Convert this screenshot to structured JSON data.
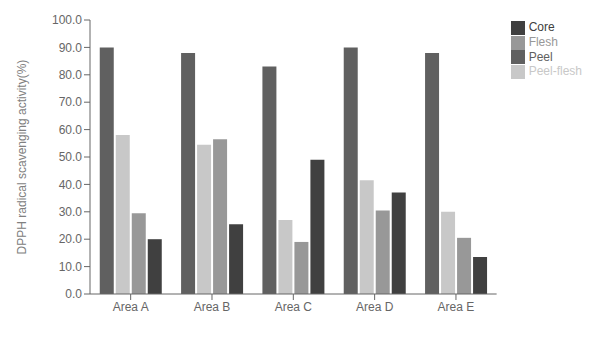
{
  "chart_data": {
    "type": "bar",
    "categories": [
      "Area A",
      "Area B",
      "Area C",
      "Area D",
      "Area E"
    ],
    "series": [
      {
        "name": "Peel",
        "color": "#606060",
        "values": [
          90.0,
          88.0,
          83.0,
          90.0,
          88.0
        ]
      },
      {
        "name": "Peel-flesh",
        "color": "#c8c8c8",
        "values": [
          58.0,
          54.5,
          27.0,
          41.5,
          30.0
        ]
      },
      {
        "name": "Flesh",
        "color": "#989898",
        "values": [
          29.5,
          56.5,
          19.0,
          30.5,
          20.5
        ]
      },
      {
        "name": "Core",
        "color": "#404040",
        "values": [
          20.0,
          25.5,
          49.0,
          37.0,
          13.5
        ]
      }
    ],
    "y_label": "DPPH radical scavenging activity(%)",
    "ylim": [
      0,
      100
    ],
    "yticks": [
      {
        "value": 0,
        "label": "0.0"
      },
      {
        "value": 10,
        "label": "10.0"
      },
      {
        "value": 20,
        "label": "20.0"
      },
      {
        "value": 30,
        "label": "30.0"
      },
      {
        "value": 40,
        "label": "40.0"
      },
      {
        "value": 50,
        "label": "50.0"
      },
      {
        "value": 60,
        "label": "60.0"
      },
      {
        "value": 70,
        "label": "70.0"
      },
      {
        "value": 80,
        "label": "80.0"
      },
      {
        "value": 90,
        "label": "90.0"
      },
      {
        "value": 100,
        "label": "100.0"
      }
    ],
    "grid": false,
    "legend": "upper right"
  }
}
